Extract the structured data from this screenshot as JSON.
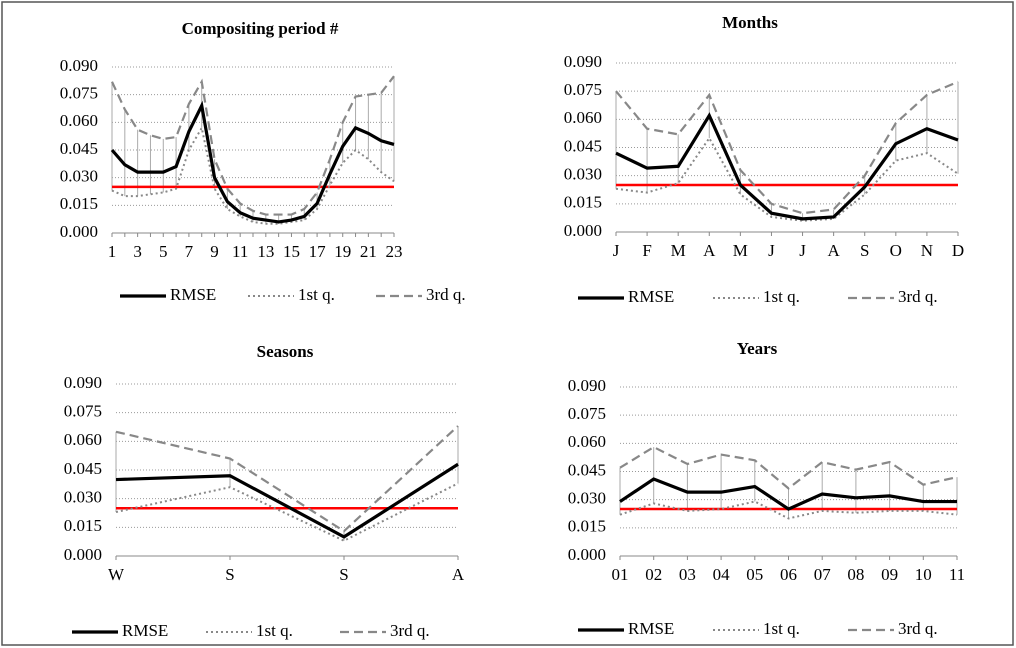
{
  "chart_data": [
    {
      "type": "line",
      "title": "Compositing period #",
      "categories": [
        "1",
        null,
        "3",
        null,
        "5",
        null,
        "7",
        null,
        "9",
        null,
        "11",
        null,
        "13",
        null,
        "15",
        null,
        "17",
        null,
        "19",
        null,
        "21",
        null,
        "23"
      ],
      "series": [
        {
          "name": "RMSE",
          "color": "#000000",
          "style": "solid",
          "values": [
            0.045,
            0.037,
            0.033,
            0.033,
            0.033,
            0.036,
            0.055,
            0.069,
            0.03,
            0.017,
            0.011,
            0.008,
            0.007,
            0.006,
            0.007,
            0.009,
            0.016,
            0.032,
            0.047,
            0.057,
            0.054,
            0.05,
            0.048
          ]
        },
        {
          "name": "1st q.",
          "color": "#888888",
          "style": "dotted",
          "values": [
            0.023,
            0.02,
            0.02,
            0.021,
            0.022,
            0.024,
            0.045,
            0.057,
            0.024,
            0.013,
            0.009,
            0.006,
            0.005,
            0.005,
            0.006,
            0.007,
            0.013,
            0.026,
            0.038,
            0.045,
            0.04,
            0.033,
            0.028
          ]
        },
        {
          "name": "3rd q.",
          "color": "#888888",
          "style": "dashed",
          "values": [
            0.082,
            0.067,
            0.056,
            0.053,
            0.051,
            0.052,
            0.07,
            0.082,
            0.04,
            0.024,
            0.016,
            0.012,
            0.01,
            0.01,
            0.01,
            0.013,
            0.022,
            0.04,
            0.06,
            0.074,
            0.075,
            0.076,
            0.085
          ]
        }
      ],
      "ylim": [
        0,
        0.09
      ],
      "yticks": [
        {
          "value": 0,
          "label": "0.000"
        },
        {
          "value": 0.015,
          "label": "0.015"
        },
        {
          "value": 0.03,
          "label": "0.030"
        },
        {
          "value": 0.045,
          "label": "0.045"
        },
        {
          "value": 0.06,
          "label": "0.060"
        },
        {
          "value": 0.075,
          "label": "0.075"
        },
        {
          "value": 0.09,
          "label": "0.090"
        }
      ],
      "grid": true,
      "high_low_lines": true,
      "reference_line": {
        "value": 0.025,
        "color": "#ff0000"
      }
    },
    {
      "type": "line",
      "title": "Months",
      "categories": [
        "J",
        "F",
        "M",
        "A",
        "M",
        "J",
        "J",
        "A",
        "S",
        "O",
        "N",
        "D"
      ],
      "series": [
        {
          "name": "RMSE",
          "color": "#000000",
          "style": "solid",
          "values": [
            0.042,
            0.034,
            0.035,
            0.062,
            0.025,
            0.01,
            0.007,
            0.008,
            0.024,
            0.047,
            0.055,
            0.049
          ]
        },
        {
          "name": "1st q.",
          "color": "#888888",
          "style": "dotted",
          "values": [
            0.023,
            0.021,
            0.026,
            0.05,
            0.02,
            0.008,
            0.006,
            0.007,
            0.02,
            0.038,
            0.042,
            0.031
          ]
        },
        {
          "name": "3rd q.",
          "color": "#888888",
          "style": "dashed",
          "values": [
            0.075,
            0.055,
            0.052,
            0.073,
            0.033,
            0.015,
            0.01,
            0.012,
            0.03,
            0.058,
            0.073,
            0.08
          ]
        }
      ],
      "ylim": [
        0,
        0.09
      ],
      "yticks": [
        {
          "value": 0,
          "label": "0.000"
        },
        {
          "value": 0.015,
          "label": "0.015"
        },
        {
          "value": 0.03,
          "label": "0.030"
        },
        {
          "value": 0.045,
          "label": "0.045"
        },
        {
          "value": 0.06,
          "label": "0.060"
        },
        {
          "value": 0.075,
          "label": "0.075"
        },
        {
          "value": 0.09,
          "label": "0.090"
        }
      ],
      "grid": true,
      "high_low_lines": true,
      "reference_line": {
        "value": 0.025,
        "color": "#ff0000"
      }
    },
    {
      "type": "line",
      "title": "Seasons",
      "categories": [
        "W",
        "S",
        "S",
        "A"
      ],
      "series": [
        {
          "name": "RMSE",
          "color": "#000000",
          "style": "solid",
          "values": [
            0.04,
            0.042,
            0.01,
            0.048
          ]
        },
        {
          "name": "1st q.",
          "color": "#888888",
          "style": "dotted",
          "values": [
            0.023,
            0.036,
            0.008,
            0.038
          ]
        },
        {
          "name": "3rd q.",
          "color": "#888888",
          "style": "dashed",
          "values": [
            0.065,
            0.051,
            0.013,
            0.068
          ]
        }
      ],
      "ylim": [
        0,
        0.09
      ],
      "yticks": [
        {
          "value": 0,
          "label": "0.000"
        },
        {
          "value": 0.015,
          "label": "0.015"
        },
        {
          "value": 0.03,
          "label": "0.030"
        },
        {
          "value": 0.045,
          "label": "0.045"
        },
        {
          "value": 0.06,
          "label": "0.060"
        },
        {
          "value": 0.075,
          "label": "0.075"
        },
        {
          "value": 0.09,
          "label": "0.090"
        }
      ],
      "grid": true,
      "high_low_lines": true,
      "reference_line": {
        "value": 0.025,
        "color": "#ff0000"
      }
    },
    {
      "type": "line",
      "title": "Years",
      "categories": [
        "01",
        "02",
        "03",
        "04",
        "05",
        "06",
        "07",
        "08",
        "09",
        "10",
        "11"
      ],
      "series": [
        {
          "name": "RMSE",
          "color": "#000000",
          "style": "solid",
          "values": [
            0.029,
            0.041,
            0.034,
            0.034,
            0.037,
            0.025,
            0.033,
            0.031,
            0.032,
            0.029,
            0.029
          ]
        },
        {
          "name": "1st q.",
          "color": "#888888",
          "style": "dotted",
          "values": [
            0.022,
            0.028,
            0.024,
            0.025,
            0.029,
            0.02,
            0.024,
            0.023,
            0.024,
            0.024,
            0.022
          ]
        },
        {
          "name": "3rd q.",
          "color": "#888888",
          "style": "dashed",
          "values": [
            0.047,
            0.058,
            0.049,
            0.054,
            0.051,
            0.036,
            0.05,
            0.046,
            0.05,
            0.038,
            0.042
          ]
        }
      ],
      "ylim": [
        0,
        0.09
      ],
      "yticks": [
        {
          "value": 0,
          "label": "0.000"
        },
        {
          "value": 0.015,
          "label": "0.015"
        },
        {
          "value": 0.03,
          "label": "0.030"
        },
        {
          "value": 0.045,
          "label": "0.045"
        },
        {
          "value": 0.06,
          "label": "0.060"
        },
        {
          "value": 0.075,
          "label": "0.075"
        },
        {
          "value": 0.09,
          "label": "0.090"
        }
      ],
      "grid": true,
      "high_low_lines": true,
      "reference_line": {
        "value": 0.025,
        "color": "#ff0000"
      }
    }
  ]
}
